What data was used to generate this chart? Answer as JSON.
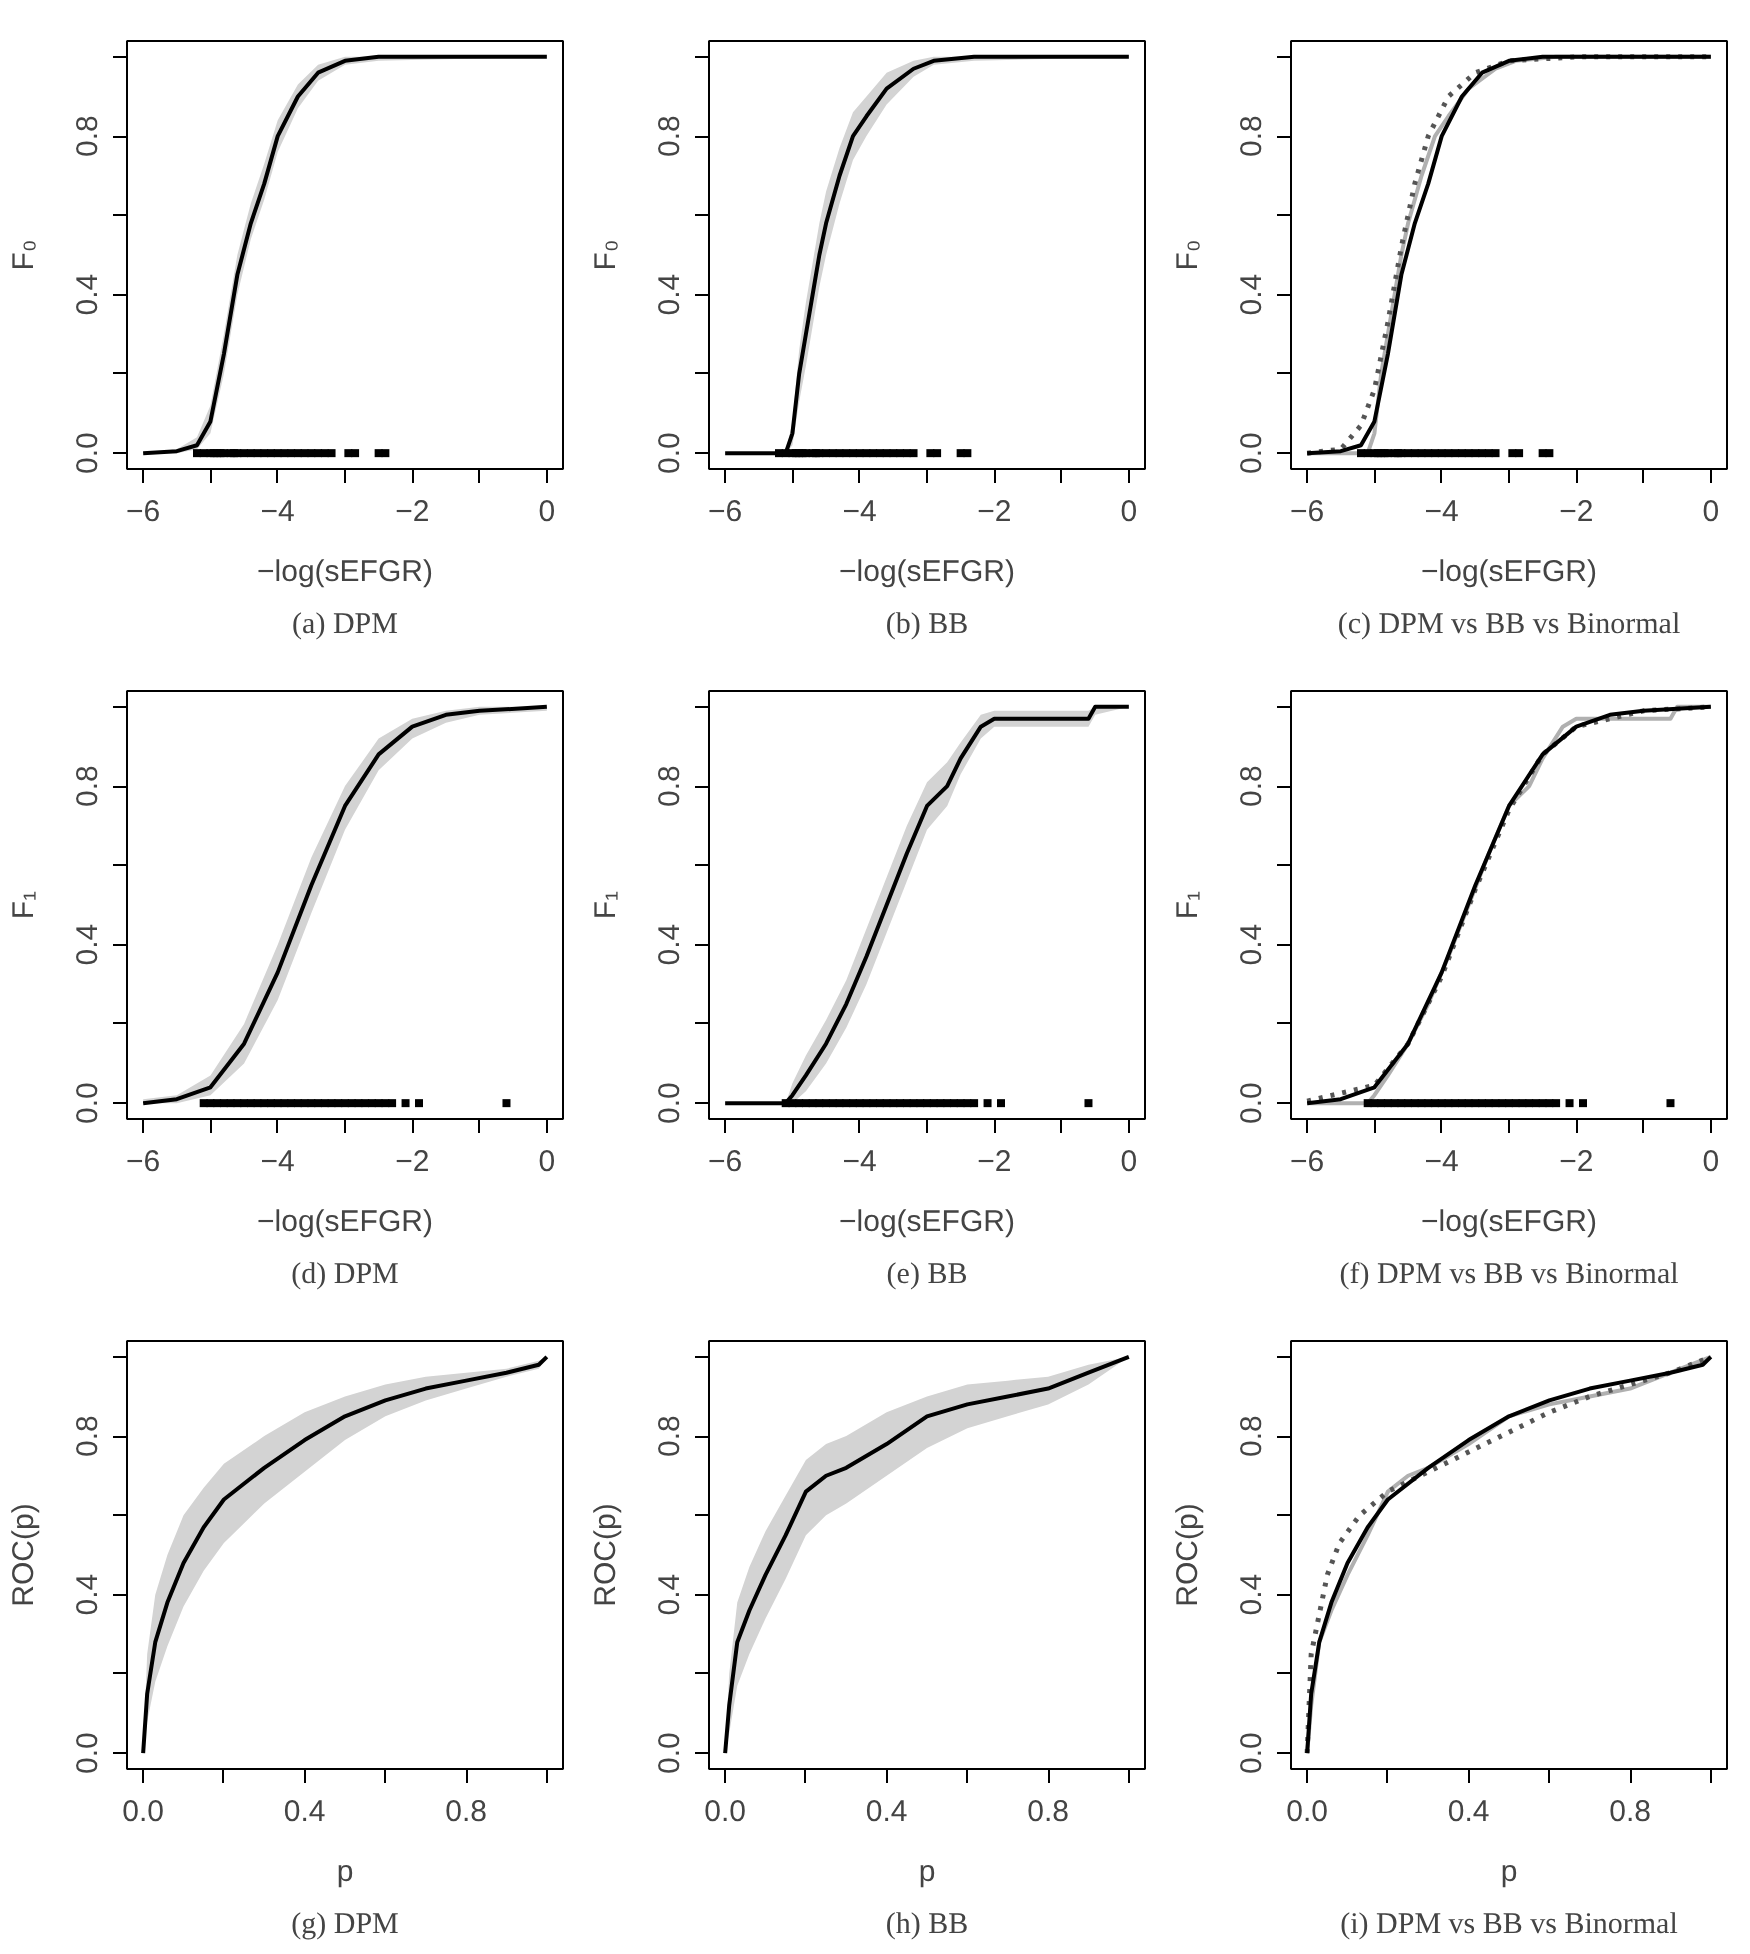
{
  "chart_data": [
    {
      "type": "line",
      "title": "(a) DPM",
      "xlabel": "−log(sEFGR)",
      "ylabel": "F₀",
      "xlim": [
        -6.24,
        0.24
      ],
      "ylim": [
        -0.04,
        1.04
      ],
      "xticks": [
        -6,
        {
          "value": -5,
          "label": null
        },
        -4,
        {
          "value": -3,
          "label": null
        },
        -2,
        {
          "value": -1,
          "label": null
        },
        0
      ],
      "yticks": [
        {
          "value": 0,
          "label": "0.0"
        },
        {
          "value": 0.2,
          "label": null
        },
        {
          "value": 0.4,
          "label": "0.4"
        },
        {
          "value": 0.6,
          "label": null
        },
        {
          "value": 0.8,
          "label": "0.8"
        },
        {
          "value": 1,
          "label": null
        }
      ],
      "series": [
        {
          "color": "#000000",
          "x": [
            -6,
            -5.5,
            -5.2,
            -5,
            -4.8,
            -4.6,
            -4.4,
            -4.2,
            -4,
            -3.7,
            -3.4,
            -3,
            -2.5,
            0
          ],
          "values": [
            0,
            0.005,
            0.02,
            0.08,
            0.25,
            0.45,
            0.58,
            0.68,
            0.8,
            0.9,
            0.96,
            0.99,
            1,
            1
          ],
          "lower": [
            0,
            0,
            0.01,
            0.05,
            0.2,
            0.4,
            0.54,
            0.64,
            0.76,
            0.87,
            0.94,
            0.98,
            0.99,
            1
          ],
          "upper": [
            0,
            0.01,
            0.04,
            0.12,
            0.3,
            0.5,
            0.63,
            0.73,
            0.84,
            0.93,
            0.98,
            1,
            1,
            1
          ]
        },
        {
          "type": "scatter",
          "marker": "square",
          "color": "#000000",
          "x": [
            -5.2,
            -5.1,
            -5,
            -4.95,
            -4.9,
            -4.85,
            -4.8,
            -4.7,
            -4.65,
            -4.6,
            -4.5,
            -4.4,
            -4.3,
            -4.2,
            -4.1,
            -4,
            -3.9,
            -3.8,
            -3.7,
            -3.6,
            -3.5,
            -3.4,
            -3.3,
            -3.2,
            -2.95,
            -2.85,
            -2.5,
            -2.4
          ],
          "values": [
            0,
            0,
            0,
            0,
            0,
            0,
            0,
            0,
            0,
            0,
            0,
            0,
            0,
            0,
            0,
            0,
            0,
            0,
            0,
            0,
            0,
            0,
            0,
            0,
            0,
            0,
            0,
            0
          ]
        }
      ]
    },
    {
      "type": "line",
      "title": "(b) BB",
      "xlabel": "−log(sEFGR)",
      "ylabel": "F₀",
      "xlim": [
        -6.24,
        0.24
      ],
      "ylim": [
        -0.04,
        1.04
      ],
      "xticks": [
        -6,
        {
          "value": -5,
          "label": null
        },
        -4,
        {
          "value": -3,
          "label": null
        },
        -2,
        {
          "value": -1,
          "label": null
        },
        0
      ],
      "yticks": [
        {
          "value": 0,
          "label": "0.0"
        },
        {
          "value": 0.2,
          "label": null
        },
        {
          "value": 0.4,
          "label": "0.4"
        },
        {
          "value": 0.6,
          "label": null
        },
        {
          "value": 0.8,
          "label": "0.8"
        },
        {
          "value": 1,
          "label": null
        }
      ],
      "series": [
        {
          "color": "#000000",
          "x": [
            -6,
            -5.1,
            -5,
            -4.9,
            -4.8,
            -4.7,
            -4.6,
            -4.5,
            -4.3,
            -4.1,
            -3.9,
            -3.6,
            -3.2,
            -2.9,
            -2.3,
            0
          ],
          "values": [
            0,
            0,
            0.05,
            0.2,
            0.3,
            0.4,
            0.5,
            0.58,
            0.7,
            0.8,
            0.85,
            0.92,
            0.97,
            0.99,
            1,
            1
          ],
          "lower": [
            0,
            0,
            0.02,
            0.13,
            0.22,
            0.32,
            0.42,
            0.5,
            0.63,
            0.74,
            0.8,
            0.88,
            0.95,
            0.98,
            0.99,
            1
          ],
          "upper": [
            0,
            0,
            0.08,
            0.26,
            0.38,
            0.48,
            0.58,
            0.66,
            0.77,
            0.86,
            0.9,
            0.96,
            0.99,
            1,
            1,
            1
          ]
        },
        {
          "type": "scatter",
          "marker": "square",
          "color": "#000000",
          "x": [
            -5.2,
            -5.1,
            -5,
            -4.95,
            -4.9,
            -4.85,
            -4.8,
            -4.7,
            -4.65,
            -4.6,
            -4.5,
            -4.4,
            -4.3,
            -4.2,
            -4.1,
            -4,
            -3.9,
            -3.8,
            -3.7,
            -3.6,
            -3.5,
            -3.4,
            -3.3,
            -3.2,
            -2.95,
            -2.85,
            -2.5,
            -2.4
          ],
          "values": [
            0,
            0,
            0,
            0,
            0,
            0,
            0,
            0,
            0,
            0,
            0,
            0,
            0,
            0,
            0,
            0,
            0,
            0,
            0,
            0,
            0,
            0,
            0,
            0,
            0,
            0,
            0,
            0
          ]
        }
      ]
    },
    {
      "type": "line",
      "title": "(c) DPM vs BB vs Binormal",
      "xlabel": "−log(sEFGR)",
      "ylabel": "F₀",
      "xlim": [
        -6.24,
        0.24
      ],
      "ylim": [
        -0.04,
        1.04
      ],
      "xticks": [
        -6,
        {
          "value": -5,
          "label": null
        },
        -4,
        {
          "value": -3,
          "label": null
        },
        -2,
        {
          "value": -1,
          "label": null
        },
        0
      ],
      "yticks": [
        {
          "value": 0,
          "label": "0.0"
        },
        {
          "value": 0.2,
          "label": null
        },
        {
          "value": 0.4,
          "label": "0.4"
        },
        {
          "value": 0.6,
          "label": null
        },
        {
          "value": 0.8,
          "label": "0.8"
        },
        {
          "value": 1,
          "label": null
        }
      ],
      "series": [
        {
          "color": "#b0b0b0",
          "x": [
            -6,
            -5.1,
            -5,
            -4.9,
            -4.8,
            -4.7,
            -4.6,
            -4.5,
            -4.3,
            -4.1,
            -3.9,
            -3.6,
            -3.2,
            -2.9,
            -2.3,
            0
          ],
          "values": [
            0,
            0,
            0.05,
            0.2,
            0.3,
            0.4,
            0.5,
            0.58,
            0.7,
            0.8,
            0.85,
            0.92,
            0.97,
            0.99,
            1,
            1
          ]
        },
        {
          "color": "#555555",
          "line_style": "dotted",
          "x": [
            -6,
            -5.5,
            -5.2,
            -5,
            -4.8,
            -4.6,
            -4.4,
            -4.2,
            -3.9,
            -3.5,
            -3,
            -2,
            0
          ],
          "values": [
            0,
            0.01,
            0.07,
            0.16,
            0.33,
            0.52,
            0.68,
            0.8,
            0.9,
            0.96,
            0.99,
            1,
            1
          ]
        },
        {
          "color": "#000000",
          "x": [
            -6,
            -5.5,
            -5.2,
            -5,
            -4.8,
            -4.6,
            -4.4,
            -4.2,
            -4,
            -3.7,
            -3.4,
            -3,
            -2.5,
            0
          ],
          "values": [
            0,
            0.005,
            0.02,
            0.08,
            0.25,
            0.45,
            0.58,
            0.68,
            0.8,
            0.9,
            0.96,
            0.99,
            1,
            1
          ]
        },
        {
          "type": "scatter",
          "marker": "square",
          "color": "#000000",
          "x": [
            -5.2,
            -5.1,
            -5,
            -4.95,
            -4.9,
            -4.85,
            -4.8,
            -4.7,
            -4.65,
            -4.6,
            -4.5,
            -4.4,
            -4.3,
            -4.2,
            -4.1,
            -4,
            -3.9,
            -3.8,
            -3.7,
            -3.6,
            -3.5,
            -3.4,
            -3.3,
            -3.2,
            -2.95,
            -2.85,
            -2.5,
            -2.4
          ],
          "values": [
            0,
            0,
            0,
            0,
            0,
            0,
            0,
            0,
            0,
            0,
            0,
            0,
            0,
            0,
            0,
            0,
            0,
            0,
            0,
            0,
            0,
            0,
            0,
            0,
            0,
            0,
            0,
            0
          ]
        }
      ]
    },
    {
      "type": "line",
      "title": "(d) DPM",
      "xlabel": "−log(sEFGR)",
      "ylabel": "F₁",
      "xlim": [
        -6.24,
        0.24
      ],
      "ylim": [
        -0.04,
        1.04
      ],
      "xticks": [
        -6,
        {
          "value": -5,
          "label": null
        },
        -4,
        {
          "value": -3,
          "label": null
        },
        -2,
        {
          "value": -1,
          "label": null
        },
        0
      ],
      "yticks": [
        {
          "value": 0,
          "label": "0.0"
        },
        {
          "value": 0.2,
          "label": null
        },
        {
          "value": 0.4,
          "label": "0.4"
        },
        {
          "value": 0.6,
          "label": null
        },
        {
          "value": 0.8,
          "label": "0.8"
        },
        {
          "value": 1,
          "label": null
        }
      ],
      "series": [
        {
          "color": "#000000",
          "x": [
            -6,
            -5.5,
            -5,
            -4.5,
            -4,
            -3.5,
            -3,
            -2.5,
            -2,
            -1.5,
            -1,
            0
          ],
          "values": [
            0,
            0.01,
            0.04,
            0.15,
            0.33,
            0.55,
            0.75,
            0.88,
            0.95,
            0.98,
            0.99,
            1
          ],
          "lower": [
            0,
            0,
            0.02,
            0.1,
            0.26,
            0.48,
            0.69,
            0.84,
            0.92,
            0.96,
            0.98,
            0.99
          ],
          "upper": [
            0.01,
            0.02,
            0.07,
            0.2,
            0.4,
            0.62,
            0.8,
            0.92,
            0.97,
            0.99,
            1,
            1
          ]
        },
        {
          "type": "scatter",
          "marker": "square",
          "color": "#000000",
          "x": [
            -5.1,
            -5,
            -4.9,
            -4.8,
            -4.7,
            -4.6,
            -4.5,
            -4.4,
            -4.3,
            -4.2,
            -4.1,
            -4,
            -3.9,
            -3.8,
            -3.7,
            -3.6,
            -3.5,
            -3.4,
            -3.3,
            -3.2,
            -3.1,
            -3,
            -2.9,
            -2.8,
            -2.7,
            -2.6,
            -2.5,
            -2.4,
            -2.3,
            -2.1,
            -1.9,
            -0.6
          ],
          "values": [
            0,
            0,
            0,
            0,
            0,
            0,
            0,
            0,
            0,
            0,
            0,
            0,
            0,
            0,
            0,
            0,
            0,
            0,
            0,
            0,
            0,
            0,
            0,
            0,
            0,
            0,
            0,
            0,
            0,
            0,
            0,
            0
          ]
        }
      ]
    },
    {
      "type": "line",
      "title": "(e) BB",
      "xlabel": "−log(sEFGR)",
      "ylabel": "F₁",
      "xlim": [
        -6.24,
        0.24
      ],
      "ylim": [
        -0.04,
        1.04
      ],
      "xticks": [
        -6,
        {
          "value": -5,
          "label": null
        },
        -4,
        {
          "value": -3,
          "label": null
        },
        -2,
        {
          "value": -1,
          "label": null
        },
        0
      ],
      "yticks": [
        {
          "value": 0,
          "label": "0.0"
        },
        {
          "value": 0.2,
          "label": null
        },
        {
          "value": 0.4,
          "label": "0.4"
        },
        {
          "value": 0.6,
          "label": null
        },
        {
          "value": 0.8,
          "label": "0.8"
        },
        {
          "value": 1,
          "label": null
        }
      ],
      "series": [
        {
          "color": "#000000",
          "x": [
            -6,
            -5.1,
            -5,
            -4.8,
            -4.5,
            -4.2,
            -3.9,
            -3.6,
            -3.3,
            -3,
            -2.7,
            -2.5,
            -2.2,
            -2,
            -0.6,
            -0.5,
            0
          ],
          "values": [
            0,
            0,
            0.02,
            0.07,
            0.15,
            0.25,
            0.37,
            0.5,
            0.63,
            0.75,
            0.8,
            0.87,
            0.95,
            0.97,
            0.97,
            1,
            1
          ],
          "lower": [
            0,
            0,
            0,
            0.03,
            0.1,
            0.19,
            0.3,
            0.43,
            0.56,
            0.69,
            0.75,
            0.83,
            0.92,
            0.95,
            0.95,
            0.98,
            1
          ],
          "upper": [
            0,
            0,
            0.05,
            0.12,
            0.21,
            0.31,
            0.44,
            0.57,
            0.7,
            0.81,
            0.86,
            0.91,
            0.98,
            0.99,
            0.99,
            1,
            1
          ]
        },
        {
          "type": "scatter",
          "marker": "square",
          "color": "#000000",
          "x": [
            -5.1,
            -5,
            -4.9,
            -4.8,
            -4.7,
            -4.6,
            -4.5,
            -4.4,
            -4.3,
            -4.2,
            -4.1,
            -4,
            -3.9,
            -3.8,
            -3.7,
            -3.6,
            -3.5,
            -3.4,
            -3.3,
            -3.2,
            -3.1,
            -3,
            -2.9,
            -2.8,
            -2.7,
            -2.6,
            -2.5,
            -2.4,
            -2.3,
            -2.1,
            -1.9,
            -0.6
          ],
          "values": [
            0,
            0,
            0,
            0,
            0,
            0,
            0,
            0,
            0,
            0,
            0,
            0,
            0,
            0,
            0,
            0,
            0,
            0,
            0,
            0,
            0,
            0,
            0,
            0,
            0,
            0,
            0,
            0,
            0,
            0,
            0,
            0
          ]
        }
      ]
    },
    {
      "type": "line",
      "title": "(f) DPM vs BB vs Binormal",
      "xlabel": "−log(sEFGR)",
      "ylabel": "F₁",
      "xlim": [
        -6.24,
        0.24
      ],
      "ylim": [
        -0.04,
        1.04
      ],
      "xticks": [
        -6,
        {
          "value": -5,
          "label": null
        },
        -4,
        {
          "value": -3,
          "label": null
        },
        -2,
        {
          "value": -1,
          "label": null
        },
        0
      ],
      "yticks": [
        {
          "value": 0,
          "label": "0.0"
        },
        {
          "value": 0.2,
          "label": null
        },
        {
          "value": 0.4,
          "label": "0.4"
        },
        {
          "value": 0.6,
          "label": null
        },
        {
          "value": 0.8,
          "label": "0.8"
        },
        {
          "value": 1,
          "label": null
        }
      ],
      "series": [
        {
          "color": "#b0b0b0",
          "x": [
            -6,
            -5.1,
            -5,
            -4.8,
            -4.5,
            -4.2,
            -3.9,
            -3.6,
            -3.3,
            -3,
            -2.7,
            -2.5,
            -2.2,
            -2,
            -0.6,
            -0.5,
            0
          ],
          "values": [
            0,
            0,
            0.02,
            0.07,
            0.15,
            0.25,
            0.37,
            0.5,
            0.63,
            0.75,
            0.8,
            0.87,
            0.95,
            0.97,
            0.97,
            1,
            1
          ]
        },
        {
          "color": "#555555",
          "line_style": "dotted",
          "x": [
            -6,
            -5,
            -4.5,
            -4,
            -3.5,
            -3,
            -2.5,
            -2,
            -1,
            0
          ],
          "values": [
            0.005,
            0.045,
            0.15,
            0.32,
            0.54,
            0.74,
            0.88,
            0.95,
            0.99,
            1
          ]
        },
        {
          "color": "#000000",
          "x": [
            -6,
            -5.5,
            -5,
            -4.5,
            -4,
            -3.5,
            -3,
            -2.5,
            -2,
            -1.5,
            -1,
            0
          ],
          "values": [
            0,
            0.01,
            0.04,
            0.15,
            0.33,
            0.55,
            0.75,
            0.88,
            0.95,
            0.98,
            0.99,
            1
          ]
        },
        {
          "type": "scatter",
          "marker": "square",
          "color": "#000000",
          "x": [
            -5.1,
            -5,
            -4.9,
            -4.8,
            -4.7,
            -4.6,
            -4.5,
            -4.4,
            -4.3,
            -4.2,
            -4.1,
            -4,
            -3.9,
            -3.8,
            -3.7,
            -3.6,
            -3.5,
            -3.4,
            -3.3,
            -3.2,
            -3.1,
            -3,
            -2.9,
            -2.8,
            -2.7,
            -2.6,
            -2.5,
            -2.4,
            -2.3,
            -2.1,
            -1.9,
            -0.6
          ],
          "values": [
            0,
            0,
            0,
            0,
            0,
            0,
            0,
            0,
            0,
            0,
            0,
            0,
            0,
            0,
            0,
            0,
            0,
            0,
            0,
            0,
            0,
            0,
            0,
            0,
            0,
            0,
            0,
            0,
            0,
            0,
            0,
            0
          ]
        }
      ]
    },
    {
      "type": "line",
      "title": "(g) DPM",
      "xlabel": "p",
      "ylabel": "ROC(p)",
      "xlim": [
        -0.04,
        1.04
      ],
      "ylim": [
        -0.04,
        1.04
      ],
      "xticks": [
        {
          "value": 0,
          "label": "0.0"
        },
        {
          "value": 0.2,
          "label": null
        },
        {
          "value": 0.4,
          "label": "0.4"
        },
        {
          "value": 0.6,
          "label": null
        },
        {
          "value": 0.8,
          "label": "0.8"
        },
        {
          "value": 1,
          "label": null
        }
      ],
      "yticks": [
        {
          "value": 0,
          "label": "0.0"
        },
        {
          "value": 0.2,
          "label": null
        },
        {
          "value": 0.4,
          "label": "0.4"
        },
        {
          "value": 0.6,
          "label": null
        },
        {
          "value": 0.8,
          "label": "0.8"
        },
        {
          "value": 1,
          "label": null
        }
      ],
      "series": [
        {
          "color": "#000000",
          "x": [
            0,
            0.01,
            0.03,
            0.06,
            0.1,
            0.15,
            0.2,
            0.3,
            0.4,
            0.5,
            0.6,
            0.7,
            0.8,
            0.9,
            0.98,
            1
          ],
          "values": [
            0,
            0.15,
            0.28,
            0.38,
            0.48,
            0.57,
            0.64,
            0.72,
            0.79,
            0.85,
            0.89,
            0.92,
            0.94,
            0.96,
            0.98,
            1
          ],
          "lower": [
            0,
            0.08,
            0.18,
            0.27,
            0.37,
            0.46,
            0.53,
            0.63,
            0.71,
            0.79,
            0.85,
            0.89,
            0.92,
            0.95,
            0.97,
            1
          ],
          "upper": [
            0,
            0.25,
            0.4,
            0.5,
            0.6,
            0.67,
            0.73,
            0.8,
            0.86,
            0.9,
            0.93,
            0.95,
            0.96,
            0.97,
            0.99,
            1
          ]
        }
      ]
    },
    {
      "type": "line",
      "title": "(h) BB",
      "xlabel": "p",
      "ylabel": "ROC(p)",
      "xlim": [
        -0.04,
        1.04
      ],
      "ylim": [
        -0.04,
        1.04
      ],
      "xticks": [
        {
          "value": 0,
          "label": "0.0"
        },
        {
          "value": 0.2,
          "label": null
        },
        {
          "value": 0.4,
          "label": "0.4"
        },
        {
          "value": 0.6,
          "label": null
        },
        {
          "value": 0.8,
          "label": "0.8"
        },
        {
          "value": 1,
          "label": null
        }
      ],
      "yticks": [
        {
          "value": 0,
          "label": "0.0"
        },
        {
          "value": 0.2,
          "label": null
        },
        {
          "value": 0.4,
          "label": "0.4"
        },
        {
          "value": 0.6,
          "label": null
        },
        {
          "value": 0.8,
          "label": "0.8"
        },
        {
          "value": 1,
          "label": null
        }
      ],
      "series": [
        {
          "color": "#000000",
          "x": [
            0,
            0.01,
            0.03,
            0.06,
            0.1,
            0.15,
            0.2,
            0.25,
            0.3,
            0.4,
            0.5,
            0.6,
            0.7,
            0.8,
            0.9,
            1
          ],
          "values": [
            0,
            0.12,
            0.28,
            0.36,
            0.45,
            0.55,
            0.66,
            0.7,
            0.72,
            0.78,
            0.85,
            0.88,
            0.9,
            0.92,
            0.96,
            1
          ],
          "lower": [
            0,
            0.05,
            0.17,
            0.25,
            0.34,
            0.44,
            0.55,
            0.6,
            0.63,
            0.7,
            0.77,
            0.82,
            0.85,
            0.88,
            0.93,
            1
          ],
          "upper": [
            0,
            0.2,
            0.38,
            0.47,
            0.56,
            0.65,
            0.74,
            0.78,
            0.8,
            0.86,
            0.9,
            0.93,
            0.94,
            0.95,
            0.98,
            1
          ]
        }
      ]
    },
    {
      "type": "line",
      "title": "(i) DPM vs BB vs Binormal",
      "xlabel": "p",
      "ylabel": "ROC(p)",
      "xlim": [
        -0.04,
        1.04
      ],
      "ylim": [
        -0.04,
        1.04
      ],
      "xticks": [
        {
          "value": 0,
          "label": "0.0"
        },
        {
          "value": 0.2,
          "label": null
        },
        {
          "value": 0.4,
          "label": "0.4"
        },
        {
          "value": 0.6,
          "label": null
        },
        {
          "value": 0.8,
          "label": "0.8"
        },
        {
          "value": 1,
          "label": null
        }
      ],
      "yticks": [
        {
          "value": 0,
          "label": "0.0"
        },
        {
          "value": 0.2,
          "label": null
        },
        {
          "value": 0.4,
          "label": "0.4"
        },
        {
          "value": 0.6,
          "label": null
        },
        {
          "value": 0.8,
          "label": "0.8"
        },
        {
          "value": 1,
          "label": null
        }
      ],
      "series": [
        {
          "color": "#b0b0b0",
          "x": [
            0,
            0.01,
            0.03,
            0.06,
            0.1,
            0.15,
            0.2,
            0.25,
            0.3,
            0.4,
            0.5,
            0.6,
            0.7,
            0.8,
            0.9,
            1
          ],
          "values": [
            0,
            0.12,
            0.28,
            0.36,
            0.45,
            0.55,
            0.66,
            0.7,
            0.72,
            0.78,
            0.85,
            0.88,
            0.9,
            0.92,
            0.96,
            1
          ]
        },
        {
          "color": "#555555",
          "line_style": "dotted",
          "x": [
            0,
            0.01,
            0.03,
            0.05,
            0.08,
            0.13,
            0.2,
            0.3,
            0.4,
            0.5,
            0.6,
            0.7,
            0.8,
            0.9,
            1
          ],
          "values": [
            0,
            0.25,
            0.35,
            0.45,
            0.53,
            0.6,
            0.66,
            0.71,
            0.76,
            0.81,
            0.86,
            0.9,
            0.93,
            0.96,
            1
          ]
        },
        {
          "color": "#000000",
          "x": [
            0,
            0.01,
            0.03,
            0.06,
            0.1,
            0.15,
            0.2,
            0.3,
            0.4,
            0.5,
            0.6,
            0.7,
            0.8,
            0.9,
            0.98,
            1
          ],
          "values": [
            0,
            0.15,
            0.28,
            0.38,
            0.48,
            0.57,
            0.64,
            0.72,
            0.79,
            0.85,
            0.89,
            0.92,
            0.94,
            0.96,
            0.98,
            1
          ]
        }
      ]
    }
  ]
}
